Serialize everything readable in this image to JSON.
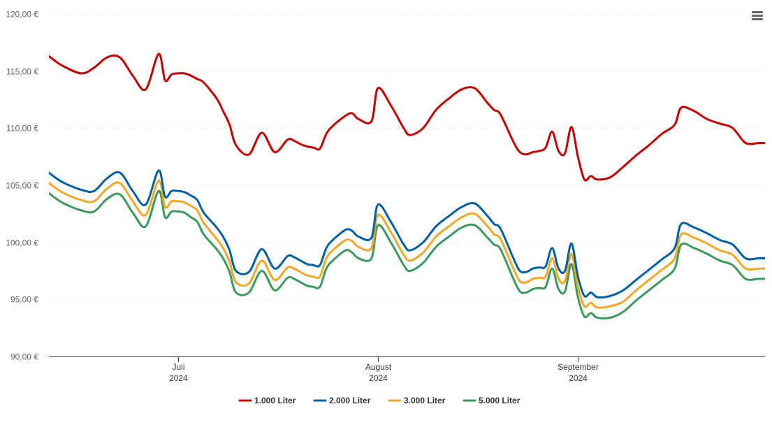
{
  "chart_data": {
    "type": "line",
    "title": "",
    "xlabel": "",
    "ylabel": "",
    "ylim": [
      90,
      120
    ],
    "y_ticks": [
      "90,00 €",
      "95,00 €",
      "100,00 €",
      "105,00 €",
      "110,00 €",
      "115,00 €",
      "120,00 €"
    ],
    "y_tick_values": [
      90,
      95,
      100,
      105,
      110,
      115,
      120
    ],
    "x_range": [
      "2024-06-11",
      "2024-09-30"
    ],
    "x_ticks": [
      {
        "date": "2024-07-01",
        "month": "Juli",
        "year": "2024"
      },
      {
        "date": "2024-08-01",
        "month": "August",
        "year": "2024"
      },
      {
        "date": "2024-09-01",
        "month": "September",
        "year": "2024"
      }
    ],
    "grid": true,
    "legend_position": "bottom-center",
    "x": [
      "2024-06-11",
      "2024-06-13",
      "2024-06-16",
      "2024-06-18",
      "2024-06-20",
      "2024-06-22",
      "2024-06-24",
      "2024-06-26",
      "2024-06-28",
      "2024-06-29",
      "2024-06-30",
      "2024-07-01",
      "2024-07-02",
      "2024-07-03",
      "2024-07-04",
      "2024-07-05",
      "2024-07-07",
      "2024-07-08",
      "2024-07-09",
      "2024-07-10",
      "2024-07-12",
      "2024-07-14",
      "2024-07-16",
      "2024-07-18",
      "2024-07-19",
      "2024-07-20",
      "2024-07-21",
      "2024-07-22",
      "2024-07-23",
      "2024-07-24",
      "2024-07-25",
      "2024-07-27",
      "2024-07-28",
      "2024-07-29",
      "2024-07-31",
      "2024-08-01",
      "2024-08-03",
      "2024-08-05",
      "2024-08-06",
      "2024-08-08",
      "2024-08-10",
      "2024-08-12",
      "2024-08-14",
      "2024-08-16",
      "2024-08-18",
      "2024-08-19",
      "2024-08-20",
      "2024-08-22",
      "2024-08-23",
      "2024-08-24",
      "2024-08-25",
      "2024-08-26",
      "2024-08-27",
      "2024-08-28",
      "2024-08-29",
      "2024-08-30",
      "2024-08-31",
      "2024-09-01",
      "2024-09-02",
      "2024-09-03",
      "2024-09-04",
      "2024-09-06",
      "2024-09-08",
      "2024-09-10",
      "2024-09-12",
      "2024-09-14",
      "2024-09-16",
      "2024-09-17",
      "2024-09-19",
      "2024-09-21",
      "2024-09-23",
      "2024-09-25",
      "2024-09-27",
      "2024-09-29",
      "2024-09-30"
    ],
    "series": [
      {
        "name": "1.000 Liter",
        "color": "#cc0000",
        "values": [
          116.3,
          115.5,
          114.8,
          115.3,
          116.2,
          116.2,
          114.6,
          113.4,
          116.5,
          114.2,
          114.7,
          114.8,
          114.8,
          114.6,
          114.3,
          114.0,
          112.6,
          111.5,
          110.3,
          108.5,
          107.7,
          109.6,
          107.9,
          109.0,
          108.9,
          108.6,
          108.4,
          108.3,
          108.2,
          109.5,
          110.2,
          111.1,
          111.3,
          110.8,
          110.6,
          113.5,
          112.0,
          110.0,
          109.4,
          110.0,
          111.6,
          112.6,
          113.4,
          113.5,
          112.2,
          111.6,
          111.2,
          108.8,
          107.9,
          107.7,
          107.9,
          108.0,
          108.3,
          109.7,
          108.0,
          107.8,
          110.1,
          107.5,
          105.5,
          105.8,
          105.5,
          105.7,
          106.6,
          107.6,
          108.5,
          109.5,
          110.3,
          111.8,
          111.5,
          110.8,
          110.4,
          110.0,
          108.7,
          108.7,
          108.7
        ]
      },
      {
        "name": "2.000 Liter",
        "color": "#0060a8",
        "values": [
          106.1,
          105.3,
          104.6,
          104.5,
          105.6,
          106.1,
          104.5,
          103.3,
          106.3,
          104.0,
          104.5,
          104.5,
          104.4,
          104.1,
          103.7,
          102.6,
          101.3,
          100.5,
          99.3,
          97.5,
          97.4,
          99.4,
          97.7,
          98.8,
          98.7,
          98.4,
          98.1,
          98.0,
          98.0,
          99.5,
          100.2,
          101.1,
          101.0,
          100.5,
          100.4,
          103.3,
          101.8,
          99.8,
          99.3,
          100.0,
          101.4,
          102.3,
          103.1,
          103.4,
          102.3,
          101.6,
          101.2,
          98.6,
          97.5,
          97.4,
          97.7,
          97.8,
          97.9,
          99.5,
          97.7,
          97.5,
          99.9,
          97.0,
          95.3,
          95.6,
          95.2,
          95.3,
          95.8,
          96.7,
          97.6,
          98.5,
          99.5,
          101.6,
          101.3,
          100.8,
          100.2,
          99.8,
          98.6,
          98.6,
          98.6
        ]
      },
      {
        "name": "3.000 Liter",
        "color": "#f5a623",
        "values": [
          105.2,
          104.4,
          103.7,
          103.6,
          104.7,
          105.2,
          103.6,
          102.4,
          105.4,
          103.1,
          103.6,
          103.6,
          103.5,
          103.2,
          102.8,
          101.7,
          100.3,
          99.5,
          98.3,
          96.5,
          96.4,
          98.4,
          96.7,
          97.8,
          97.7,
          97.4,
          97.1,
          97.0,
          97.0,
          98.6,
          99.3,
          100.2,
          100.1,
          99.6,
          99.5,
          102.4,
          100.9,
          98.9,
          98.4,
          99.1,
          100.5,
          101.4,
          102.2,
          102.5,
          101.4,
          100.7,
          100.3,
          97.7,
          96.6,
          96.5,
          96.8,
          96.9,
          97.0,
          98.6,
          96.8,
          96.6,
          99.0,
          96.1,
          94.4,
          94.7,
          94.3,
          94.4,
          94.8,
          95.8,
          96.7,
          97.6,
          98.6,
          100.7,
          100.4,
          99.9,
          99.3,
          98.9,
          97.7,
          97.7,
          97.7
        ]
      },
      {
        "name": "5.000 Liter",
        "color": "#3a9a5b",
        "values": [
          104.3,
          103.5,
          102.8,
          102.7,
          103.8,
          104.2,
          102.6,
          101.4,
          104.5,
          102.2,
          102.7,
          102.7,
          102.6,
          102.2,
          101.8,
          100.7,
          99.4,
          98.6,
          97.4,
          95.6,
          95.6,
          97.5,
          95.8,
          96.9,
          96.8,
          96.5,
          96.2,
          96.1,
          96.1,
          97.7,
          98.4,
          99.3,
          99.1,
          98.6,
          98.6,
          101.5,
          100.0,
          98.0,
          97.5,
          98.2,
          99.6,
          100.5,
          101.3,
          101.5,
          100.4,
          99.8,
          99.4,
          96.8,
          95.7,
          95.6,
          95.9,
          96.0,
          96.1,
          97.7,
          95.9,
          95.7,
          98.1,
          95.2,
          93.5,
          93.8,
          93.4,
          93.4,
          93.9,
          94.9,
          95.8,
          96.7,
          97.7,
          99.8,
          99.5,
          99.0,
          98.4,
          98.0,
          96.8,
          96.8,
          96.8
        ]
      }
    ]
  },
  "menu": {
    "icon": "hamburger-icon"
  }
}
